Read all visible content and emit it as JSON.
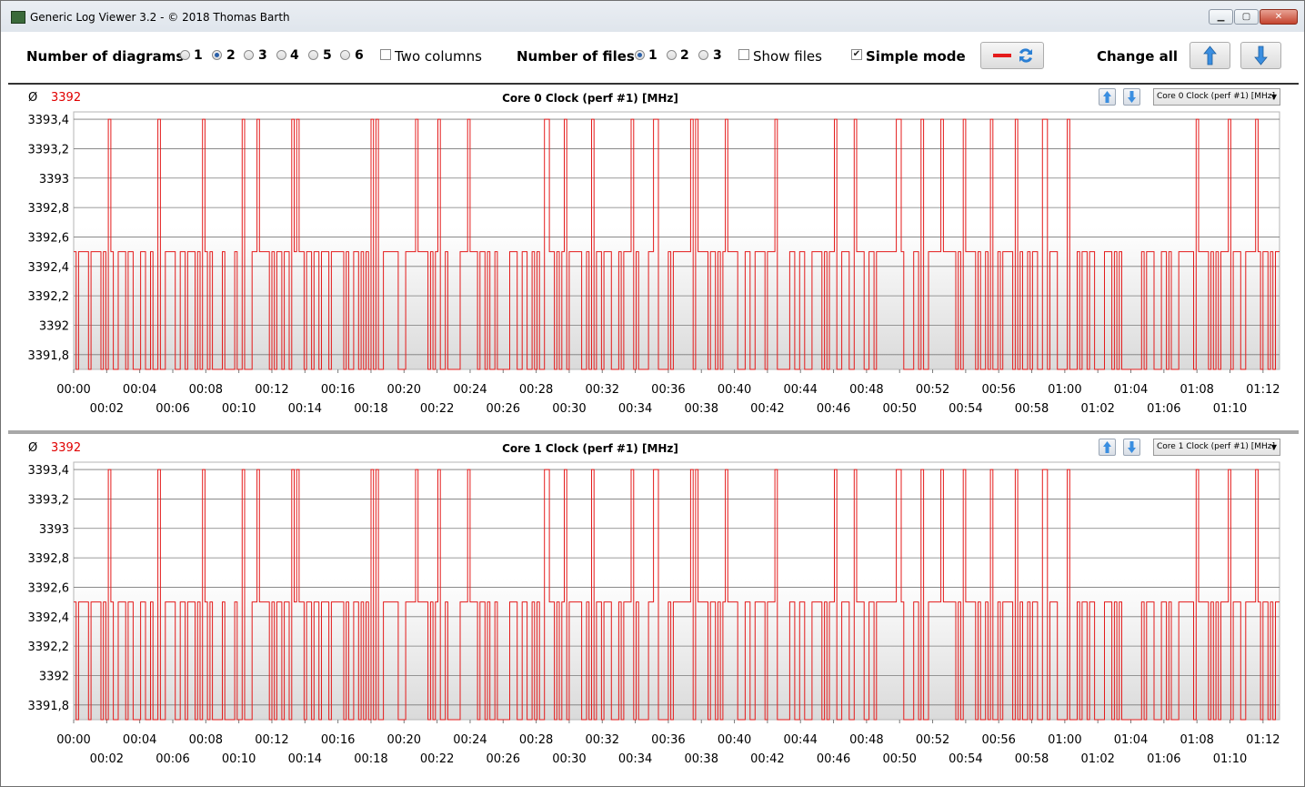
{
  "window": {
    "title": "Generic Log Viewer 3.2 - © 2018 Thomas Barth",
    "minimize_icon": "minimize-icon",
    "maximize_icon": "maximize-icon",
    "close_icon": "close-icon"
  },
  "toolbar": {
    "diagrams_label": "Number of diagrams",
    "diagram_options": [
      "1",
      "2",
      "3",
      "4",
      "5",
      "6"
    ],
    "diagram_selected": "2",
    "two_columns_label": "Two columns",
    "two_columns_checked": false,
    "files_label": "Number of files",
    "file_options": [
      "1",
      "2",
      "3"
    ],
    "file_selected": "1",
    "show_files_label": "Show files",
    "show_files_checked": false,
    "simple_mode_label": "Simple mode",
    "simple_mode_checked": true,
    "change_all_label": "Change all",
    "line_color": "#e41b1b",
    "swap_icon": "swap-arrows-icon",
    "up_icon": "arrow-up-icon",
    "down_icon": "arrow-down-icon"
  },
  "panels": [
    {
      "avg_symbol": "Ø",
      "avg_value": "3392",
      "title": "Core 0 Clock (perf #1) [MHz]",
      "combo_value": "Core 0 Clock (perf #1) [MHz]"
    },
    {
      "avg_symbol": "Ø",
      "avg_value": "3392",
      "title": "Core 1 Clock (perf #1) [MHz]",
      "combo_value": "Core 1 Clock (perf #1) [MHz]"
    }
  ],
  "chart_data": [
    {
      "type": "line",
      "title": "Core 0 Clock (perf #1) [MHz]",
      "series": [
        {
          "name": "Core 0 Clock (perf #1) [MHz]",
          "color": "#e41b1b",
          "average": 3392,
          "levels": [
            3391.7,
            3392.5,
            3393.4
          ]
        }
      ],
      "ylim": [
        3391.7,
        3393.45
      ],
      "yticks": [
        "3393,4",
        "3393,2",
        "3393",
        "3392,8",
        "3392,6",
        "3392,4",
        "3392,2",
        "3392",
        "3391,8"
      ],
      "xlim": [
        "00:00",
        "01:13"
      ],
      "xticks_top": [
        "00:00",
        "00:04",
        "00:08",
        "00:12",
        "00:16",
        "00:20",
        "00:24",
        "00:28",
        "00:32",
        "00:36",
        "00:40",
        "00:44",
        "00:48",
        "00:52",
        "00:56",
        "01:00",
        "01:04",
        "01:08",
        "01:12"
      ],
      "xticks_bottom": [
        "00:02",
        "00:06",
        "00:10",
        "00:14",
        "00:18",
        "00:22",
        "00:26",
        "00:30",
        "00:34",
        "00:38",
        "00:42",
        "00:46",
        "00:50",
        "00:54",
        "00:58",
        "01:02",
        "01:06",
        "01:10"
      ],
      "grid": true,
      "peak_times_sec": [
        2,
        5,
        7.7,
        10.2,
        11.1,
        13.2,
        13.4,
        18,
        18.2,
        20.6,
        22,
        23.7,
        28.4,
        28.6,
        29.6,
        31.2,
        33.6,
        35,
        35.1,
        37.3,
        37.6,
        39.4,
        42.3,
        45.9,
        47.1,
        49.7,
        49.9,
        51.2,
        52.4,
        53.8,
        55.4,
        56.9,
        58.5,
        58.7,
        60.1,
        67.8,
        69.8,
        71.5
      ]
    },
    {
      "type": "line",
      "title": "Core 1 Clock (perf #1) [MHz]",
      "series": [
        {
          "name": "Core 1 Clock (perf #1) [MHz]",
          "color": "#e41b1b",
          "average": 3392,
          "levels": [
            3391.7,
            3392.5,
            3393.4
          ]
        }
      ],
      "ylim": [
        3391.7,
        3393.45
      ],
      "yticks": [
        "3393,4",
        "3393,2",
        "3393",
        "3392,8",
        "3392,6",
        "3392,4",
        "3392,2",
        "3392",
        "3391,8"
      ],
      "xlim": [
        "00:00",
        "01:13"
      ],
      "xticks_top": [
        "00:00",
        "00:04",
        "00:08",
        "00:12",
        "00:16",
        "00:20",
        "00:24",
        "00:28",
        "00:32",
        "00:36",
        "00:40",
        "00:44",
        "00:48",
        "00:52",
        "00:56",
        "01:00",
        "01:04",
        "01:08",
        "01:12"
      ],
      "xticks_bottom": [
        "00:02",
        "00:06",
        "00:10",
        "00:14",
        "00:18",
        "00:22",
        "00:26",
        "00:30",
        "00:34",
        "00:38",
        "00:42",
        "00:46",
        "00:50",
        "00:54",
        "00:58",
        "01:02",
        "01:06",
        "01:10"
      ],
      "grid": true,
      "peak_times_sec": [
        2,
        5,
        7.7,
        10.2,
        11.1,
        13.2,
        13.4,
        18,
        18.2,
        20.6,
        22,
        23.7,
        28.4,
        28.6,
        29.6,
        31.2,
        33.6,
        35,
        35.1,
        37.3,
        37.6,
        39.4,
        42.3,
        45.9,
        47.1,
        49.7,
        49.9,
        51.2,
        52.4,
        53.8,
        55.4,
        56.9,
        58.5,
        58.7,
        60.1,
        67.8,
        69.8,
        71.5
      ]
    }
  ]
}
